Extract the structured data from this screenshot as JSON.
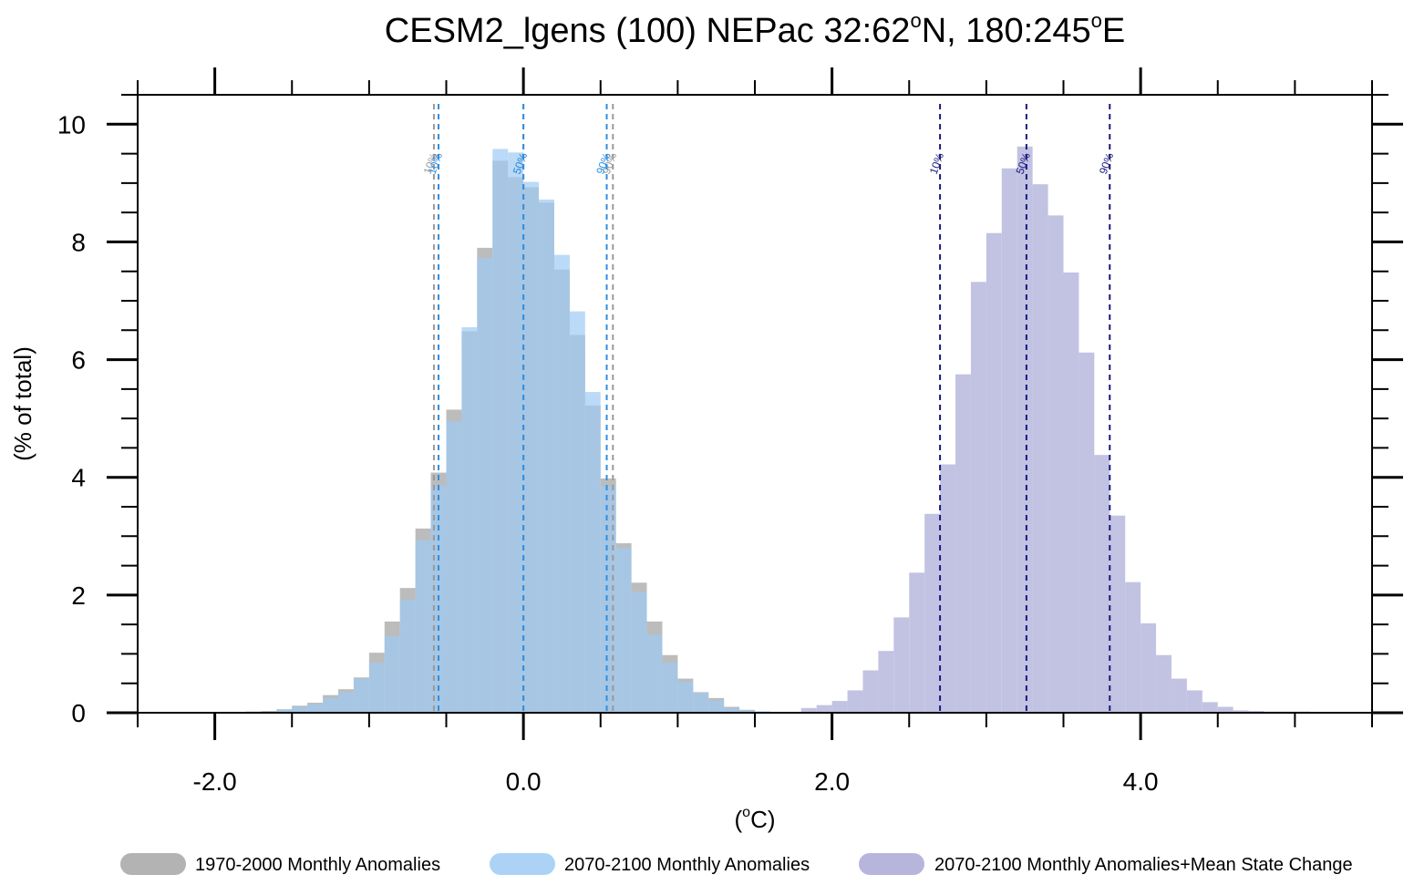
{
  "chart_data": {
    "type": "bar",
    "title_main": "CESM2_lgens (100) NEPac  32:62",
    "title_deg1": "o",
    "title_mid": "N, 180:245",
    "title_deg2": "o",
    "title_end": "E",
    "xlabel_open": "(",
    "xlabel_deg": "o",
    "xlabel_close": "C)",
    "ylabel": "(% of total)",
    "xlim": [
      -2.5,
      5.5
    ],
    "ylim": [
      0,
      10.5
    ],
    "x_ticks": [
      -2.0,
      0.0,
      2.0,
      4.0
    ],
    "x_tick_labels": [
      "-2.0",
      "0.0",
      "2.0",
      "4.0"
    ],
    "y_ticks": [
      0,
      2,
      4,
      6,
      8,
      10
    ],
    "y_tick_labels": [
      "0",
      "2",
      "4",
      "6",
      "8",
      "10"
    ],
    "bin_width": 0.1,
    "series": [
      {
        "name": "1970-2000 Monthly Anomalies",
        "color": "#a6a6a6",
        "bin_start": -1.8,
        "values": [
          0.02,
          0.03,
          0.06,
          0.12,
          0.17,
          0.3,
          0.4,
          0.6,
          1.02,
          1.55,
          2.12,
          3.13,
          4.08,
          5.15,
          6.48,
          7.9,
          9.38,
          9.1,
          8.93,
          8.67,
          7.53,
          6.42,
          5.22,
          3.98,
          2.88,
          2.21,
          1.55,
          0.98,
          0.58,
          0.35,
          0.25,
          0.1,
          0.05,
          0.02
        ]
      },
      {
        "name": "2070-2100 Monthly Anomalies",
        "color": "#9ecbf5",
        "bin_start": -1.8,
        "values": [
          0.02,
          0.02,
          0.05,
          0.1,
          0.15,
          0.25,
          0.35,
          0.58,
          0.85,
          1.3,
          1.92,
          2.93,
          3.85,
          4.95,
          6.55,
          7.73,
          9.58,
          9.52,
          9.02,
          8.72,
          7.78,
          6.82,
          5.45,
          3.85,
          2.8,
          2.05,
          1.33,
          0.85,
          0.53,
          0.34,
          0.21,
          0.08,
          0.04,
          0.02
        ]
      },
      {
        "name": "2070-2100 Monthly Anomalies+Mean State Change",
        "color": "#a9a9d6",
        "bin_start": 1.8,
        "values": [
          0.08,
          0.13,
          0.2,
          0.38,
          0.72,
          1.05,
          1.62,
          2.38,
          3.38,
          4.22,
          5.75,
          7.32,
          8.15,
          9.25,
          9.62,
          8.98,
          8.45,
          7.48,
          6.12,
          4.38,
          3.35,
          2.22,
          1.52,
          0.98,
          0.58,
          0.38,
          0.18,
          0.1,
          0.04,
          0.03,
          0.02,
          0.02,
          0.02
        ]
      }
    ],
    "percentile_lines": [
      {
        "x": -0.58,
        "label": "10%",
        "color": "#9a9a9a",
        "series": "1970-2000 Monthly Anomalies"
      },
      {
        "x": 0.0,
        "label": "50%",
        "color": "#9a9a9a",
        "series": "1970-2000 Monthly Anomalies"
      },
      {
        "x": 0.58,
        "label": "90%",
        "color": "#9a9a9a",
        "series": "1970-2000 Monthly Anomalies"
      },
      {
        "x": -0.55,
        "label": "10%",
        "color": "#2f8fe0",
        "series": "2070-2100 Monthly Anomalies"
      },
      {
        "x": 0.0,
        "label": "50%",
        "color": "#2f8fe0",
        "series": "2070-2100 Monthly Anomalies"
      },
      {
        "x": 0.54,
        "label": "90%",
        "color": "#2f8fe0",
        "series": "2070-2100 Monthly Anomalies"
      },
      {
        "x": 2.7,
        "label": "10%",
        "color": "#1a1a80",
        "series": "2070-2100 Monthly Anomalies+Mean State Change"
      },
      {
        "x": 3.26,
        "label": "50%",
        "color": "#1a1a80",
        "series": "2070-2100 Monthly Anomalies+Mean State Change"
      },
      {
        "x": 3.8,
        "label": "90%",
        "color": "#1a1a80",
        "series": "2070-2100 Monthly Anomalies+Mean State Change"
      }
    ],
    "legend_position": "bottom",
    "grid": false
  }
}
